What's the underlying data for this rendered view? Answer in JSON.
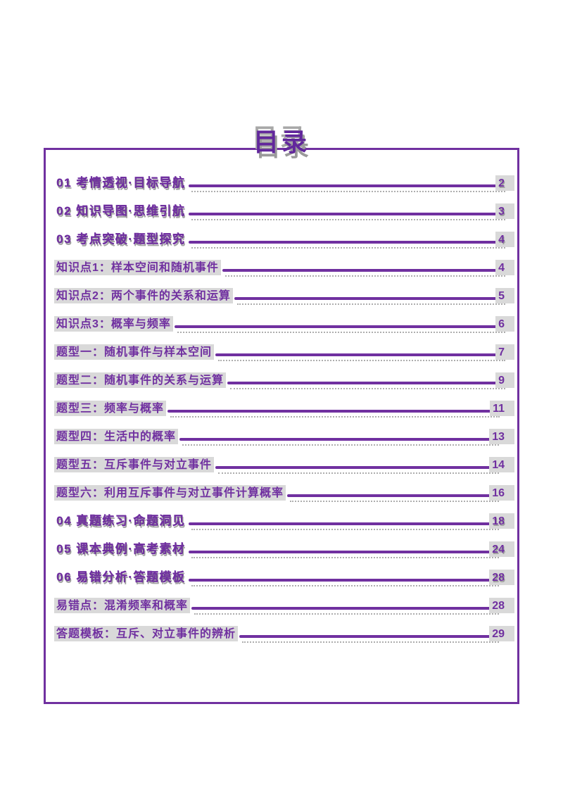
{
  "title": "目录",
  "colors": {
    "accent_purple": "#7030a0",
    "title_purple": "#62279c",
    "highlight_gray": "#d9d9d9",
    "shadow_gray": "#9a9a9a",
    "page_background": "#ffffff"
  },
  "toc": {
    "entries": [
      {
        "label": "01 考情透视·目标导航",
        "page": "2",
        "style": "section"
      },
      {
        "label": "02 知识导图·思维引航",
        "page": "3",
        "style": "section"
      },
      {
        "label": "03 考点突破·题型探究",
        "page": "4",
        "style": "section"
      },
      {
        "label": "知识点1：样本空间和随机事件",
        "page": "4",
        "style": "item"
      },
      {
        "label": "知识点2：两个事件的关系和运算",
        "page": "5",
        "style": "item"
      },
      {
        "label": "知识点3：概率与频率",
        "page": "6",
        "style": "item"
      },
      {
        "label": "题型一：随机事件与样本空间",
        "page": "7",
        "style": "item"
      },
      {
        "label": "题型二：随机事件的关系与运算",
        "page": "9",
        "style": "item"
      },
      {
        "label": "题型三：频率与概率",
        "page": "11",
        "style": "item"
      },
      {
        "label": "题型四：生活中的概率",
        "page": "13",
        "style": "item"
      },
      {
        "label": "题型五：互斥事件与对立事件",
        "page": "14",
        "style": "item"
      },
      {
        "label": "题型六：利用互斥事件与对立事件计算概率",
        "page": "16",
        "style": "item"
      },
      {
        "label": "04 真题练习·命题洞见",
        "page": "18",
        "style": "section"
      },
      {
        "label": "05 课本典例·高考素材",
        "page": "24",
        "style": "section"
      },
      {
        "label": "06 易错分析·答题模板",
        "page": "28",
        "style": "section"
      },
      {
        "label": "易错点：混淆频率和概率",
        "page": "28",
        "style": "item"
      },
      {
        "label": "答题模板：互斥、对立事件的辨析",
        "page": "29",
        "style": "item"
      }
    ]
  }
}
